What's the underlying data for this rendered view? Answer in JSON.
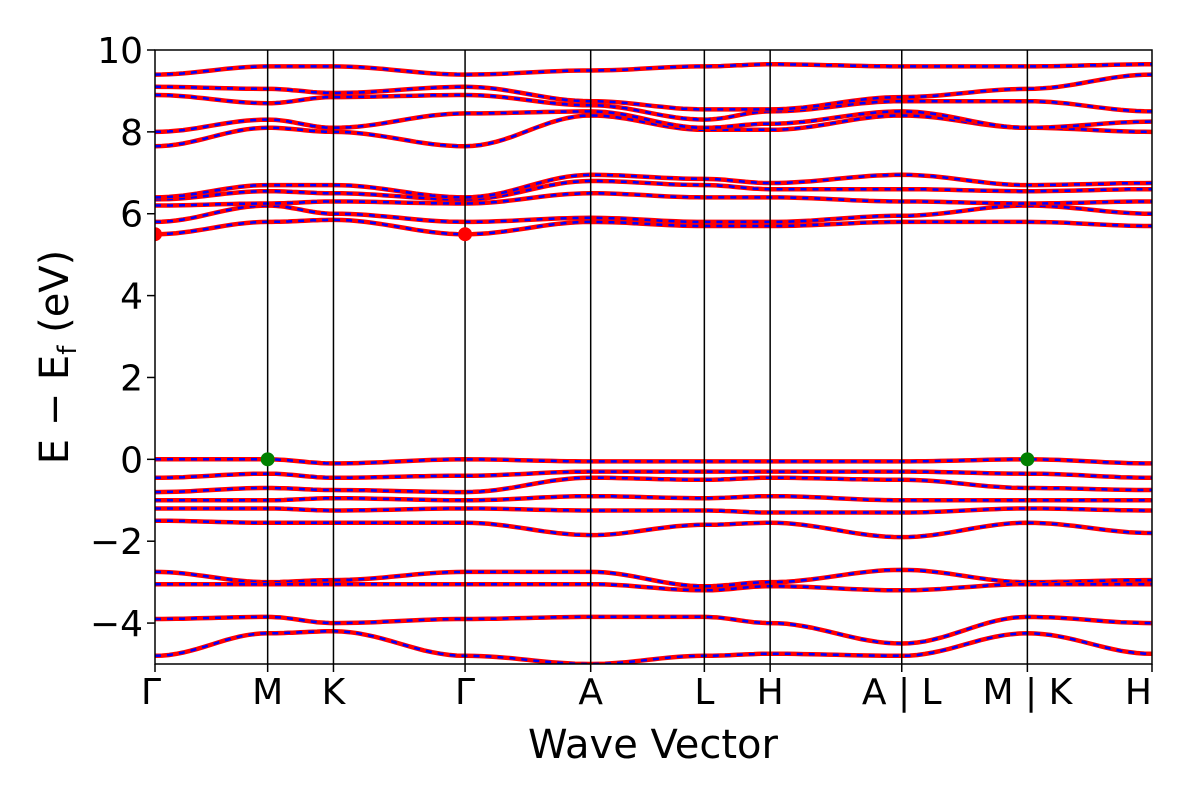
{
  "chart_data": {
    "type": "line",
    "title": "",
    "xlabel": "Wave Vector",
    "ylabel_main": "E − E",
    "ylabel_sub": "f",
    "ylabel_unit": " (eV)",
    "ylim": [
      -5,
      10
    ],
    "yticks": [
      -4,
      -2,
      0,
      2,
      4,
      6,
      8,
      10
    ],
    "ytick_labels": [
      "−4",
      "−2",
      "0",
      "2",
      "4",
      "6",
      "8",
      "10"
    ],
    "kpath_labels": [
      "Γ",
      "M",
      "K",
      "Γ",
      "A",
      "L",
      "H",
      "A | L",
      "M | K",
      "H"
    ],
    "kpath_positions": [
      0.0,
      0.113,
      0.179,
      0.311,
      0.437,
      0.551,
      0.617,
      0.749,
      0.875,
      1.0
    ],
    "segment_break_positions": [
      0.749,
      0.875
    ],
    "series": [
      {
        "bands_below_fermi": [
          [
            0.0,
            0.0,
            -0.1,
            0.0,
            -0.05,
            -0.05,
            -0.05,
            -0.05,
            0.0,
            -0.1
          ],
          [
            -0.45,
            -0.35,
            -0.45,
            -0.4,
            -0.3,
            -0.3,
            -0.3,
            -0.3,
            -0.35,
            -0.45
          ],
          [
            -0.8,
            -0.7,
            -0.75,
            -0.8,
            -0.45,
            -0.5,
            -0.45,
            -0.5,
            -0.7,
            -0.75
          ],
          [
            -1.0,
            -1.0,
            -0.95,
            -1.0,
            -0.9,
            -0.95,
            -0.9,
            -1.0,
            -1.0,
            -1.0
          ],
          [
            -1.2,
            -1.2,
            -1.25,
            -1.2,
            -1.25,
            -1.25,
            -1.3,
            -1.3,
            -1.2,
            -1.25
          ],
          [
            -1.5,
            -1.55,
            -1.55,
            -1.55,
            -1.85,
            -1.6,
            -1.55,
            -1.9,
            -1.55,
            -1.8
          ],
          [
            -2.75,
            -3.0,
            -2.95,
            -2.75,
            -2.75,
            -3.1,
            -3.0,
            -2.7,
            -3.0,
            -2.95
          ],
          [
            -3.05,
            -3.05,
            -3.05,
            -3.05,
            -3.05,
            -3.2,
            -3.1,
            -3.2,
            -3.05,
            -3.05
          ],
          [
            -3.9,
            -3.85,
            -4.0,
            -3.9,
            -3.85,
            -3.85,
            -4.0,
            -4.5,
            -3.85,
            -4.0
          ],
          [
            -4.8,
            -4.25,
            -4.2,
            -4.8,
            -5.0,
            -4.8,
            -4.75,
            -4.8,
            -4.25,
            -4.75
          ]
        ],
        "bands_above_fermi": [
          [
            5.5,
            5.8,
            5.85,
            5.5,
            5.8,
            5.7,
            5.7,
            5.8,
            5.8,
            5.7
          ],
          [
            5.8,
            6.2,
            6.0,
            5.8,
            5.9,
            5.8,
            5.8,
            5.95,
            6.2,
            6.0
          ],
          [
            6.2,
            6.25,
            6.3,
            6.25,
            6.5,
            6.4,
            6.4,
            6.3,
            6.25,
            6.3
          ],
          [
            6.35,
            6.55,
            6.5,
            6.35,
            6.8,
            6.7,
            6.6,
            6.6,
            6.55,
            6.6
          ],
          [
            6.4,
            6.7,
            6.7,
            6.4,
            6.95,
            6.85,
            6.75,
            6.95,
            6.7,
            6.75
          ],
          [
            7.65,
            8.1,
            8.0,
            7.65,
            8.4,
            8.05,
            8.05,
            8.4,
            8.1,
            8.0
          ],
          [
            8.0,
            8.3,
            8.1,
            8.45,
            8.5,
            8.1,
            8.2,
            8.5,
            8.1,
            8.25
          ],
          [
            8.9,
            8.7,
            8.85,
            8.9,
            8.65,
            8.3,
            8.5,
            8.75,
            8.75,
            8.5
          ],
          [
            9.1,
            9.05,
            8.95,
            9.1,
            8.75,
            8.55,
            8.55,
            8.85,
            9.05,
            9.4
          ],
          [
            9.4,
            9.6,
            9.6,
            9.4,
            9.5,
            9.6,
            9.65,
            9.6,
            9.6,
            9.65
          ]
        ],
        "line_color": "#ff0000",
        "dash_color": "#0000ff"
      }
    ],
    "cbm_points": [
      {
        "x": 0.0,
        "y": 5.5
      },
      {
        "x": 0.311,
        "y": 5.5
      }
    ],
    "vbm_points": [
      {
        "x": 0.113,
        "y": 0.0
      },
      {
        "x": 0.875,
        "y": 0.0
      }
    ],
    "cbm_color": "#ff0000",
    "vbm_color": "#008000",
    "grid": false,
    "legend": "none"
  }
}
